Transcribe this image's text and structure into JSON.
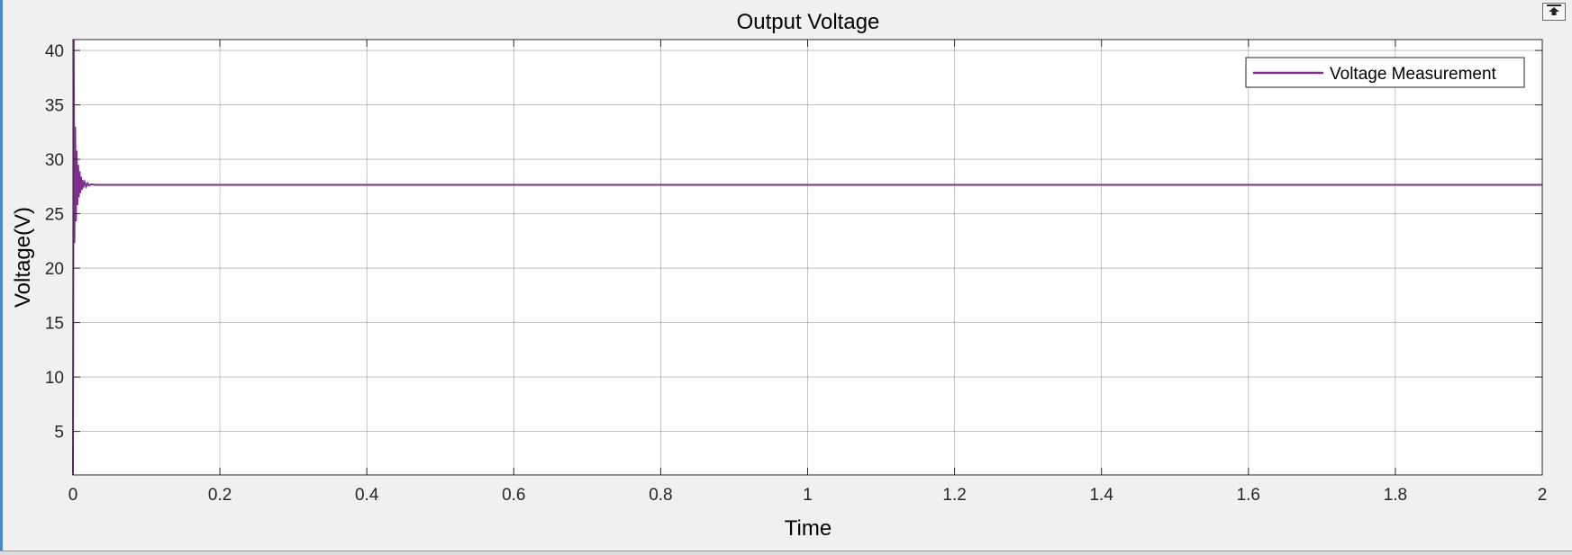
{
  "window": {
    "undock_button_icon": "undock-icon"
  },
  "chart_data": {
    "type": "line",
    "title": "Output Voltage",
    "xlabel": "Time",
    "ylabel": "Voltage(V)",
    "xlim": [
      0,
      2
    ],
    "ylim": [
      1,
      41
    ],
    "x_ticks": [
      0,
      0.2,
      0.4,
      0.6,
      0.8,
      1,
      1.2,
      1.4,
      1.6,
      1.8,
      2
    ],
    "x_tick_labels": [
      "0",
      "0.2",
      "0.4",
      "0.6",
      "0.8",
      "1",
      "1.2",
      "1.4",
      "1.6",
      "1.8",
      "2"
    ],
    "y_ticks": [
      5,
      10,
      15,
      20,
      25,
      30,
      35,
      40
    ],
    "y_tick_labels": [
      "5",
      "10",
      "15",
      "20",
      "25",
      "30",
      "35",
      "40"
    ],
    "grid": true,
    "legend_position": "top-right",
    "series": [
      {
        "name": "Voltage Measurement",
        "color": "#7e2f8e",
        "x": [
          0,
          0.001,
          0.002,
          0.003,
          0.004,
          0.005,
          0.006,
          0.007,
          0.008,
          0.009,
          0.01,
          0.011,
          0.012,
          0.013,
          0.014,
          0.016,
          0.018,
          0.02,
          0.022,
          0.025,
          0.03,
          0.05,
          0.1,
          0.5,
          1.0,
          1.5,
          2.0
        ],
        "y": [
          1,
          41,
          22.3,
          33,
          24.3,
          30.8,
          25.8,
          29.5,
          26.5,
          28.9,
          26.9,
          28.4,
          27.2,
          28.1,
          27.4,
          27.9,
          27.5,
          27.8,
          27.6,
          27.7,
          27.65,
          27.65,
          27.65,
          27.65,
          27.65,
          27.65,
          27.65
        ]
      }
    ]
  }
}
